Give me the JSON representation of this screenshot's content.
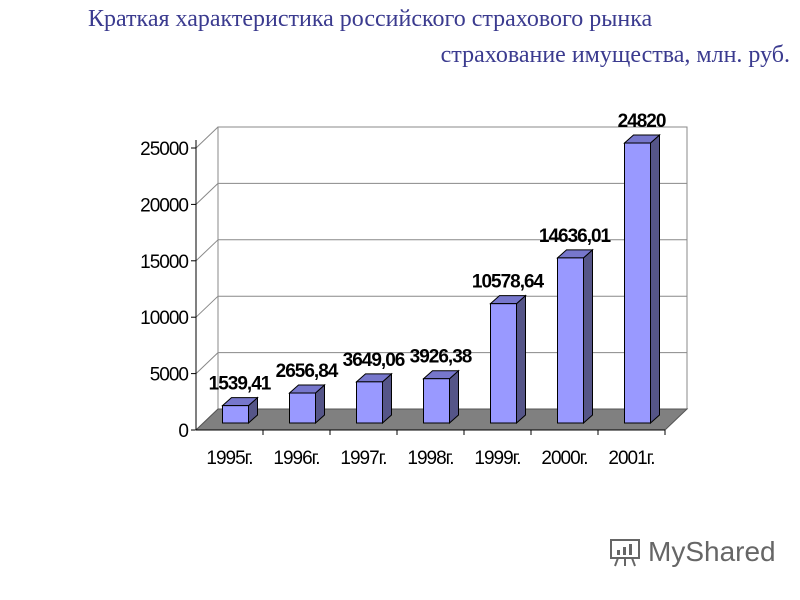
{
  "title": "Краткая характеристика российского страхового рынка",
  "subtitle": "страхование имущества, млн. руб.",
  "logo": "MyShared",
  "chart_data": {
    "type": "bar",
    "title": "страхование имущества, млн. руб.",
    "categories": [
      "1995г.",
      "1996г.",
      "1997г.",
      "1998г.",
      "1999г.",
      "2000г.",
      "2001г."
    ],
    "values": [
      1539.41,
      2656.84,
      3649.06,
      3926.38,
      10578.64,
      14636.01,
      24820
    ],
    "labels": [
      "1539,41",
      "2656,84",
      "3649,06",
      "3926,38",
      "10578,64",
      "14636,01",
      "24820"
    ],
    "yticks": [
      0,
      5000,
      10000,
      15000,
      20000,
      25000
    ],
    "ylim": [
      0,
      25000
    ],
    "grid": true,
    "colors": {
      "front": "#9999ff",
      "side": "#555588",
      "top": "#7777cc",
      "floor": "#808080"
    }
  }
}
